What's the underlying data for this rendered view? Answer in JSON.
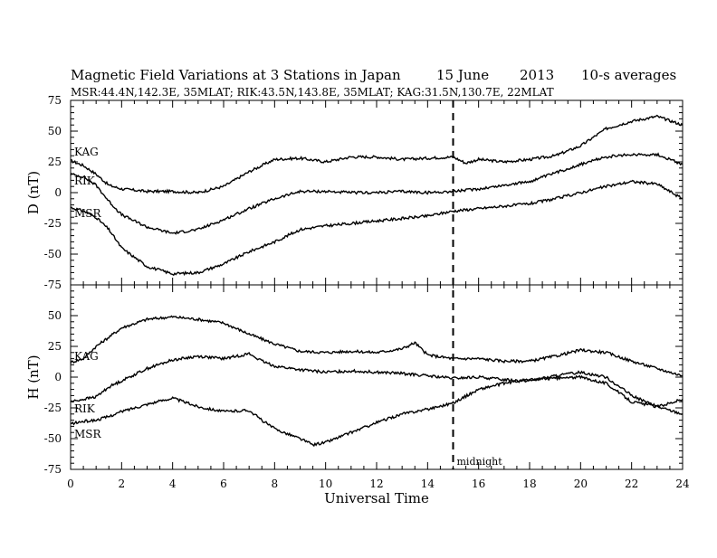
{
  "chart_data": {
    "type": "line",
    "title": "Magnetic Field Variations at 3 Stations in Japan",
    "date_day": "15 June",
    "date_year": "2013",
    "averaging": "10-s averages",
    "subtitle": "MSR:44.4N,142.3E, 35MLAT;  RIK:43.5N,143.8E, 35MLAT;  KAG:31.5N,130.7E, 22MLAT",
    "xlabel": "Universal Time",
    "xlim": [
      0,
      24
    ],
    "x_ticks": [
      "0",
      "2",
      "4",
      "6",
      "8",
      "10",
      "12",
      "14",
      "16",
      "18",
      "20",
      "22",
      "24"
    ],
    "annotation": {
      "x": 15,
      "label": "midnight"
    },
    "panels": [
      {
        "ylabel": "D (nT)",
        "ylim": [
          -75,
          75
        ],
        "y_ticks": [
          75,
          50,
          25,
          0,
          -25,
          -50,
          -75
        ],
        "series": [
          {
            "name": "KAG",
            "x": [
              0,
              0.5,
              1,
              1.5,
              2,
              3,
              4,
              5,
              6,
              7,
              8,
              9,
              10,
              11,
              12,
              13,
              14,
              15,
              15.5,
              16,
              17,
              18,
              19,
              20,
              21,
              22,
              23,
              24
            ],
            "y": [
              26,
              22,
              15,
              6,
              3,
              1,
              1,
              0,
              5,
              17,
              27,
              28,
              25,
              29,
              29,
              27,
              28,
              29,
              24,
              27,
              25,
              27,
              30,
              38,
              52,
              58,
              62,
              55
            ]
          },
          {
            "name": "RIK",
            "x": [
              0,
              0.5,
              1,
              1.5,
              2,
              3,
              4,
              5,
              6,
              7,
              8,
              9,
              10,
              11,
              12,
              13,
              14,
              15,
              16,
              17,
              18,
              19,
              20,
              21,
              22,
              23,
              24
            ],
            "y": [
              15,
              13,
              6,
              -7,
              -18,
              -28,
              -33,
              -30,
              -22,
              -13,
              -5,
              1,
              1,
              0,
              0,
              1,
              0,
              1,
              3,
              6,
              9,
              16,
              23,
              29,
              31,
              31,
              23
            ]
          },
          {
            "name": "MSR",
            "x": [
              0,
              0.5,
              1,
              1.5,
              2,
              3,
              4,
              5,
              6,
              7,
              8,
              9,
              10,
              11,
              12,
              13,
              14,
              15,
              16,
              17,
              18,
              19,
              20,
              21,
              22,
              23,
              24
            ],
            "y": [
              -12,
              -15,
              -20,
              -30,
              -45,
              -60,
              -66,
              -65,
              -58,
              -48,
              -40,
              -30,
              -27,
              -25,
              -23,
              -21,
              -19,
              -15,
              -13,
              -11,
              -9,
              -5,
              0,
              5,
              9,
              7,
              -5
            ]
          }
        ]
      },
      {
        "ylabel": "H (nT)",
        "ylim": [
          -75,
          75
        ],
        "y_ticks": [
          50,
          25,
          0,
          -25,
          -50,
          -75
        ],
        "series": [
          {
            "name": "KAG",
            "x": [
              0,
              0.5,
              1,
              2,
              3,
              4,
              5,
              6,
              7,
              8,
              9,
              10,
              11,
              12,
              13,
              13.5,
              14,
              15,
              16,
              17,
              18,
              19,
              20,
              21,
              22,
              23,
              24
            ],
            "y": [
              12,
              15,
              25,
              40,
              47,
              49,
              47,
              44,
              35,
              27,
              21,
              20,
              21,
              20,
              23,
              28,
              18,
              15,
              15,
              13,
              13,
              17,
              22,
              20,
              13,
              7,
              1
            ]
          },
          {
            "name": "RIK",
            "x": [
              0,
              0.5,
              1,
              1.5,
              2,
              3,
              4,
              5,
              6,
              7,
              7.5,
              8,
              9,
              10,
              11,
              12,
              13,
              14,
              15,
              16,
              17,
              18,
              19,
              20,
              21,
              22,
              23,
              24
            ],
            "y": [
              -20,
              -18,
              -16,
              -8,
              -3,
              7,
              14,
              17,
              15,
              19,
              13,
              9,
              6,
              4,
              5,
              4,
              3,
              1,
              -1,
              0,
              -2,
              -3,
              1,
              4,
              0,
              -15,
              -24,
              -30
            ]
          },
          {
            "name": "MSR",
            "x": [
              0,
              0.5,
              1,
              1.5,
              2,
              3,
              4,
              5,
              6,
              7,
              7.5,
              8,
              9,
              9.5,
              10,
              11,
              12,
              13,
              14,
              15,
              16,
              17,
              18,
              19,
              20,
              21,
              22,
              23,
              24
            ],
            "y": [
              -38,
              -36,
              -35,
              -32,
              -28,
              -22,
              -17,
              -24,
              -28,
              -27,
              -35,
              -42,
              -50,
              -55,
              -53,
              -45,
              -37,
              -30,
              -26,
              -21,
              -10,
              -5,
              -2,
              -1,
              0,
              -5,
              -20,
              -24,
              -18
            ]
          }
        ]
      }
    ]
  }
}
